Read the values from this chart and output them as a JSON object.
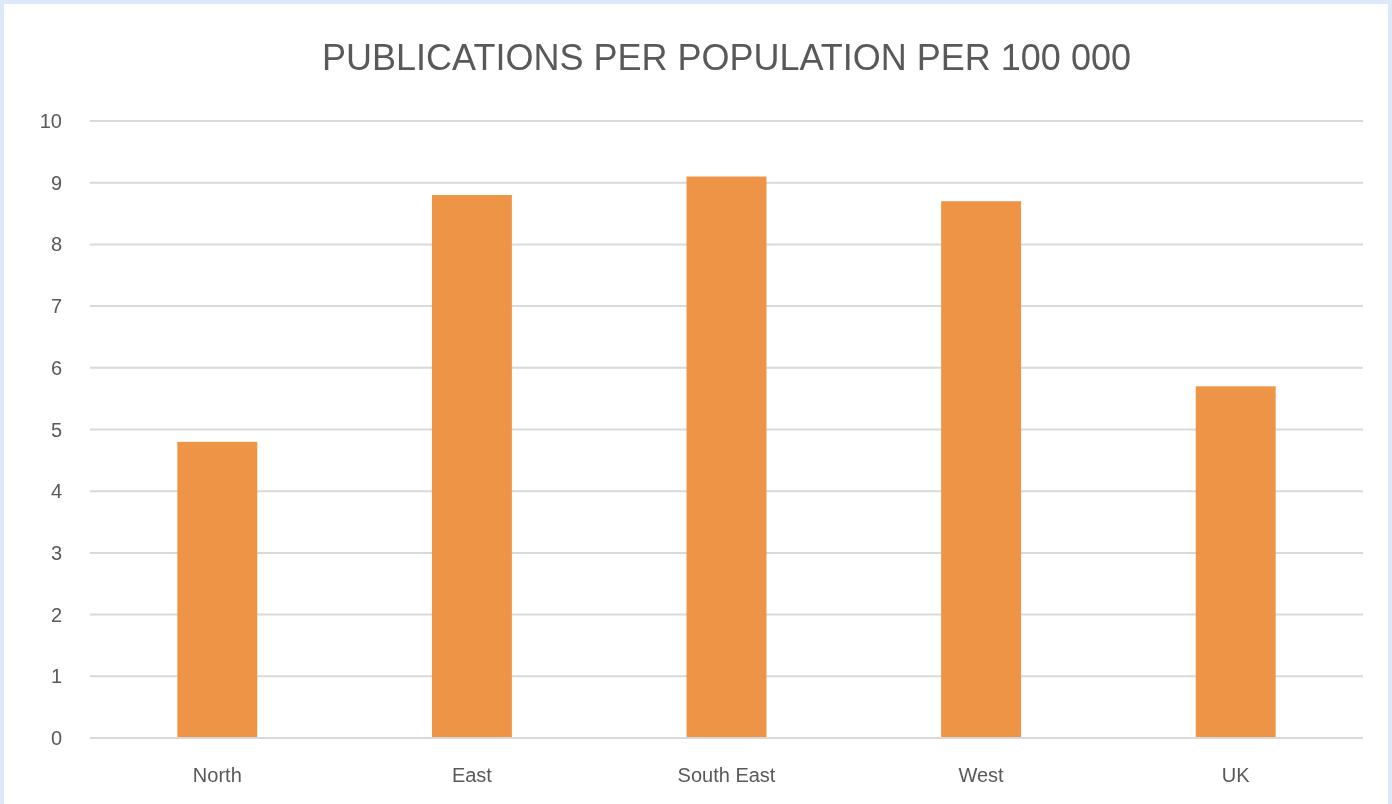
{
  "chart_data": {
    "type": "bar",
    "title": "PUBLICATIONS PER POPULATION PER 100 000",
    "categories": [
      "North",
      "East",
      "South East",
      "West",
      "UK"
    ],
    "values": [
      4.8,
      8.8,
      9.1,
      8.7,
      5.7
    ],
    "color": "#ed9447",
    "ylim": [
      0,
      10
    ],
    "yticks": [
      0,
      1,
      2,
      3,
      4,
      5,
      6,
      7,
      8,
      9,
      10
    ],
    "grid": "y"
  }
}
